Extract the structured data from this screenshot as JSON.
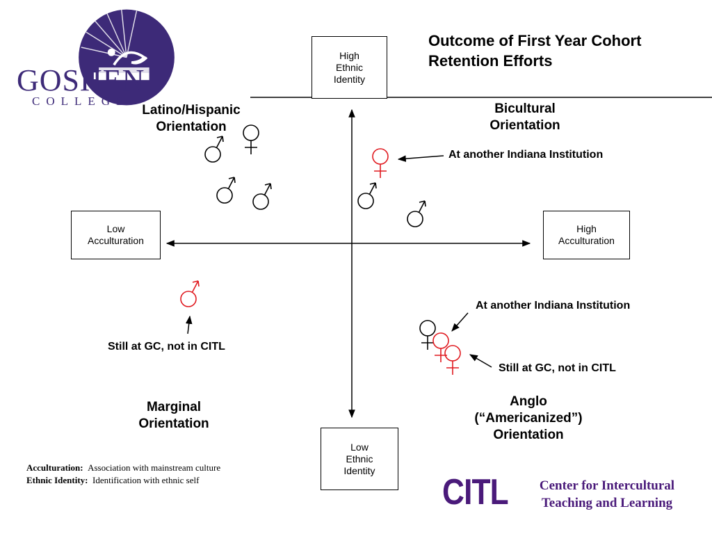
{
  "logo": {
    "name": "GOSHEN",
    "sub": "COLLEGE",
    "color": "#3d2a78"
  },
  "title": {
    "line1": "Outcome of First Year Cohort",
    "line2": "Retention Efforts"
  },
  "axes": {
    "top": [
      "High",
      "Ethnic",
      "Identity"
    ],
    "bottom": [
      "Low",
      "Ethnic",
      "Identity"
    ],
    "left": [
      "Low",
      "Acculturation"
    ],
    "right": [
      "High",
      "Acculturation"
    ]
  },
  "quadrants": {
    "top_left": [
      "Latino/Hispanic",
      "Orientation"
    ],
    "top_right": [
      "Bicultural",
      "Orientation"
    ],
    "bottom_left": [
      "Marginal",
      "Orientation"
    ],
    "bottom_right": [
      "Anglo",
      "(“Americanized”)",
      "Orientation"
    ]
  },
  "annotations": {
    "top_right_note": "At another Indiana Institution",
    "left_note": "Still at GC, not in CITL",
    "bottom_right_note1": "At another Indiana Institution",
    "bottom_right_note2": "Still at GC, not in CITL"
  },
  "symbols": {
    "colors": {
      "default": "#000000",
      "highlight": "#e0191f"
    },
    "items": [
      {
        "kind": "male",
        "quadrant": "top_left",
        "color": "default"
      },
      {
        "kind": "female",
        "quadrant": "top_left",
        "color": "default"
      },
      {
        "kind": "male",
        "quadrant": "top_left",
        "color": "default"
      },
      {
        "kind": "male",
        "quadrant": "top_left",
        "color": "default"
      },
      {
        "kind": "female",
        "quadrant": "top_right",
        "color": "highlight"
      },
      {
        "kind": "male",
        "quadrant": "top_right",
        "color": "default"
      },
      {
        "kind": "male",
        "quadrant": "top_right",
        "color": "default"
      },
      {
        "kind": "male",
        "quadrant": "bottom_left",
        "color": "highlight"
      },
      {
        "kind": "female",
        "quadrant": "bottom_right",
        "color": "default"
      },
      {
        "kind": "female",
        "quadrant": "bottom_right",
        "color": "highlight"
      },
      {
        "kind": "female",
        "quadrant": "bottom_right",
        "color": "highlight"
      }
    ]
  },
  "legend": {
    "acc_term": "Acculturation:",
    "acc_def": "Association with mainstream culture",
    "eth_term": "Ethnic Identity:",
    "eth_def": "Identification with ethnic self"
  },
  "citl": {
    "abbr": "CITL",
    "line1": "Center for Intercultural",
    "line2": "Teaching and Learning",
    "color": "#4a1a7a"
  }
}
